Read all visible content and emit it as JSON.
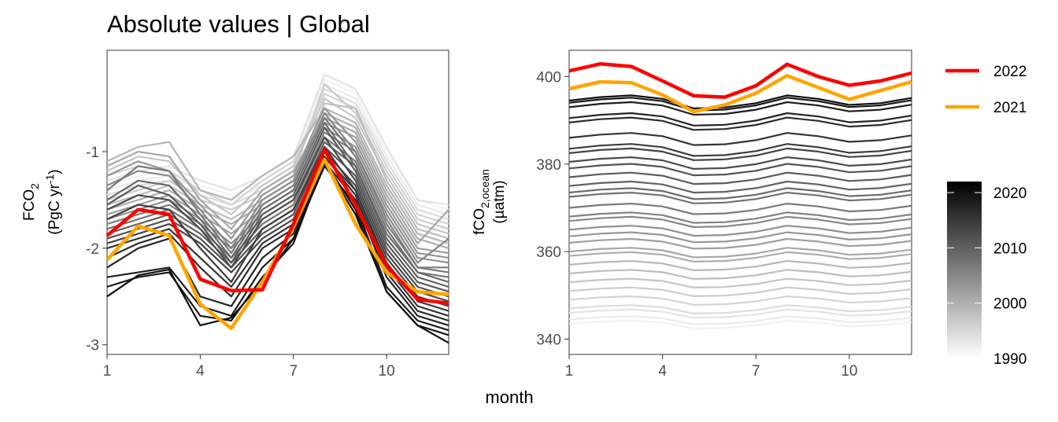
{
  "figure": {
    "title": "Absolute values | Global",
    "xlabel": "month"
  },
  "legend": {
    "highlight": [
      {
        "name": "2022",
        "color": "#FF0000"
      },
      {
        "name": "2021",
        "color": "#FFA500"
      }
    ],
    "colorbar": {
      "ticks": [
        1990,
        2000,
        2010,
        2020
      ],
      "range": [
        1990,
        2022
      ],
      "low_color": "#FFFFFF",
      "high_color": "#000000"
    }
  },
  "chart_data": [
    {
      "type": "line",
      "ylabel_main": "FCO",
      "ylabel_sub": "2",
      "ylabel_unit_prefix": "(PgC yr",
      "ylabel_unit_sup": "-1",
      "ylabel_unit_suffix": ")",
      "x": [
        1,
        2,
        3,
        4,
        5,
        6,
        7,
        8,
        9,
        10,
        11,
        12
      ],
      "xlim": [
        1,
        12
      ],
      "ylim": [
        -3.1,
        0.05
      ],
      "xticks": [
        1,
        4,
        7,
        10
      ],
      "yticks": [
        -3,
        -2,
        -1
      ],
      "background_years": [
        1990,
        1991,
        1992,
        1993,
        1994,
        1995,
        1996,
        1997,
        1998,
        1999,
        2000,
        2001,
        2002,
        2003,
        2004,
        2005,
        2006,
        2007,
        2008,
        2009,
        2010,
        2011,
        2012,
        2013,
        2014,
        2015,
        2016,
        2017,
        2018,
        2019,
        2020
      ],
      "background_series": [
        {
          "year": 1990,
          "values": [
            -1.35,
            -1.25,
            -1.2,
            -1.35,
            -1.45,
            -1.3,
            -1.1,
            -0.25,
            -0.4,
            -1.0,
            -1.5,
            -1.6
          ]
        },
        {
          "year": 1991,
          "values": [
            -1.4,
            -1.3,
            -1.25,
            -1.4,
            -1.5,
            -1.35,
            -1.15,
            -0.3,
            -0.45,
            -1.05,
            -1.55,
            -1.65
          ]
        },
        {
          "year": 1992,
          "values": [
            -1.3,
            -1.2,
            -1.15,
            -1.3,
            -1.4,
            -1.25,
            -1.05,
            -0.2,
            -0.35,
            -0.95,
            -1.5,
            -1.55
          ]
        },
        {
          "year": 1993,
          "values": [
            -1.45,
            -1.35,
            -1.3,
            -1.45,
            -1.55,
            -1.4,
            -1.2,
            -0.35,
            -0.5,
            -1.1,
            -1.6,
            -1.7
          ]
        },
        {
          "year": 1994,
          "values": [
            -1.25,
            -1.15,
            -1.2,
            -1.4,
            -1.55,
            -1.3,
            -1.1,
            -0.4,
            -0.55,
            -1.15,
            -1.65,
            -1.75
          ]
        },
        {
          "year": 1995,
          "values": [
            -1.5,
            -1.4,
            -1.3,
            -1.5,
            -1.6,
            -1.45,
            -1.25,
            -0.3,
            -0.6,
            -1.2,
            -1.7,
            -1.8
          ]
        },
        {
          "year": 1996,
          "values": [
            -1.2,
            -1.05,
            -1.1,
            -1.45,
            -1.65,
            -1.35,
            -1.15,
            -0.45,
            -0.65,
            -1.25,
            -1.75,
            -1.85
          ]
        },
        {
          "year": 1997,
          "values": [
            -1.55,
            -1.45,
            -1.35,
            -1.55,
            -1.7,
            -1.5,
            -1.3,
            -0.5,
            -0.55,
            -1.3,
            -1.8,
            -1.9
          ]
        },
        {
          "year": 1998,
          "values": [
            -1.1,
            -0.95,
            -0.9,
            -1.4,
            -1.5,
            -1.25,
            -1.05,
            -0.55,
            -0.7,
            -1.35,
            -1.85,
            -1.95
          ]
        },
        {
          "year": 1999,
          "values": [
            -1.6,
            -1.5,
            -1.4,
            -1.6,
            -1.75,
            -1.55,
            -1.35,
            -0.6,
            -0.75,
            -1.4,
            -1.9,
            -2.0
          ]
        },
        {
          "year": 2000,
          "values": [
            -1.15,
            -1.0,
            -1.05,
            -1.5,
            -1.8,
            -1.4,
            -1.2,
            -0.65,
            -0.8,
            -1.45,
            -1.95,
            -1.6
          ]
        },
        {
          "year": 2001,
          "values": [
            -1.65,
            -1.55,
            -1.45,
            -1.65,
            -1.85,
            -1.6,
            -1.4,
            -0.7,
            -0.85,
            -1.5,
            -2.0,
            -2.05
          ]
        },
        {
          "year": 2002,
          "values": [
            -1.25,
            -1.1,
            -1.2,
            -1.55,
            -1.9,
            -1.45,
            -1.25,
            -0.55,
            -0.9,
            -1.55,
            -2.05,
            -2.1
          ]
        },
        {
          "year": 2003,
          "values": [
            -1.7,
            -1.6,
            -1.5,
            -1.7,
            -1.95,
            -1.65,
            -1.45,
            -0.75,
            -0.95,
            -1.6,
            -2.1,
            -2.15
          ]
        },
        {
          "year": 2004,
          "values": [
            -1.35,
            -1.2,
            -1.25,
            -1.6,
            -2.0,
            -1.5,
            -1.3,
            -0.6,
            -1.0,
            -1.65,
            -2.15,
            -1.9
          ]
        },
        {
          "year": 2005,
          "values": [
            -1.75,
            -1.65,
            -1.55,
            -1.75,
            -2.0,
            -1.7,
            -1.5,
            -0.8,
            -1.0,
            -1.7,
            -2.2,
            -2.2
          ]
        },
        {
          "year": 2006,
          "values": [
            -1.4,
            -1.15,
            -1.2,
            -1.65,
            -2.05,
            -1.55,
            -1.35,
            -0.65,
            -1.05,
            -1.75,
            -2.2,
            -2.25
          ]
        },
        {
          "year": 2007,
          "values": [
            -1.8,
            -1.7,
            -1.6,
            -1.8,
            -2.1,
            -1.75,
            -1.55,
            -0.85,
            -1.1,
            -1.8,
            -2.25,
            -2.3
          ]
        },
        {
          "year": 2008,
          "values": [
            -1.5,
            -1.3,
            -1.35,
            -1.7,
            -2.1,
            -1.6,
            -1.4,
            -0.7,
            -1.15,
            -1.85,
            -2.25,
            -2.35
          ]
        },
        {
          "year": 2009,
          "values": [
            -1.85,
            -1.75,
            -1.65,
            -1.85,
            -2.15,
            -1.8,
            -1.6,
            -0.9,
            -1.15,
            -1.9,
            -2.3,
            -2.4
          ]
        },
        {
          "year": 2010,
          "values": [
            -1.55,
            -1.35,
            -1.45,
            -1.75,
            -2.15,
            -1.65,
            -1.45,
            -0.75,
            -1.2,
            -1.95,
            -2.35,
            -2.45
          ]
        },
        {
          "year": 2011,
          "values": [
            -1.9,
            -1.8,
            -1.7,
            -1.9,
            -2.2,
            -1.85,
            -1.65,
            -0.95,
            -1.25,
            -2.0,
            -2.4,
            -2.5
          ]
        },
        {
          "year": 2012,
          "values": [
            -1.6,
            -1.45,
            -1.5,
            -1.8,
            -2.2,
            -1.7,
            -1.5,
            -0.85,
            -1.3,
            -2.05,
            -2.45,
            -2.55
          ]
        },
        {
          "year": 2013,
          "values": [
            -1.95,
            -1.85,
            -1.75,
            -1.95,
            -2.25,
            -1.9,
            -1.7,
            -1.0,
            -1.35,
            -2.1,
            -2.5,
            -2.6
          ]
        },
        {
          "year": 2014,
          "values": [
            -1.7,
            -1.55,
            -1.6,
            -2.0,
            -2.35,
            -1.8,
            -1.6,
            -0.95,
            -1.4,
            -2.15,
            -2.55,
            -2.65
          ]
        },
        {
          "year": 2015,
          "values": [
            -2.0,
            -1.9,
            -1.8,
            -2.1,
            -2.4,
            -1.95,
            -1.75,
            -1.05,
            -1.4,
            -2.2,
            -2.6,
            -2.7
          ]
        },
        {
          "year": 2016,
          "values": [
            -2.1,
            -1.95,
            -1.85,
            -2.2,
            -2.5,
            -2.0,
            -1.8,
            -1.05,
            -1.45,
            -2.25,
            -2.65,
            -2.75
          ]
        },
        {
          "year": 2017,
          "values": [
            -2.2,
            -2.0,
            -1.9,
            -2.5,
            -2.6,
            -2.1,
            -1.85,
            -1.1,
            -1.5,
            -2.3,
            -2.7,
            -2.8
          ]
        },
        {
          "year": 2018,
          "values": [
            -2.3,
            -2.25,
            -2.2,
            -2.6,
            -2.7,
            -2.2,
            -1.9,
            -1.15,
            -1.55,
            -2.4,
            -2.75,
            -2.85
          ]
        },
        {
          "year": 2019,
          "values": [
            -2.4,
            -2.3,
            -2.25,
            -2.7,
            -2.75,
            -2.3,
            -1.95,
            -1.1,
            -1.6,
            -2.45,
            -2.8,
            -2.9
          ]
        },
        {
          "year": 2020,
          "values": [
            -2.5,
            -2.28,
            -2.22,
            -2.8,
            -2.72,
            -2.35,
            -1.9,
            -1.12,
            -1.65,
            -2.45,
            -2.8,
            -2.98
          ]
        }
      ],
      "highlight_series": [
        {
          "name": "2021",
          "color": "#FFA500",
          "values": [
            -2.12,
            -1.77,
            -1.87,
            -2.58,
            -2.83,
            -2.35,
            -1.78,
            -1.08,
            -1.75,
            -2.25,
            -2.45,
            -2.48
          ]
        },
        {
          "name": "2022",
          "color": "#FF0000",
          "values": [
            -1.87,
            -1.6,
            -1.65,
            -2.32,
            -2.44,
            -2.43,
            -1.75,
            -0.98,
            -1.55,
            -2.18,
            -2.53,
            -2.57
          ]
        }
      ]
    },
    {
      "type": "line",
      "ylabel_main": "fCO",
      "ylabel_sub": "2,ocean",
      "ylabel_unit": "(µatm)",
      "x": [
        1,
        2,
        3,
        4,
        5,
        6,
        7,
        8,
        9,
        10,
        11,
        12
      ],
      "xlim": [
        1,
        12
      ],
      "ylim": [
        336.5,
        406
      ],
      "xticks": [
        1,
        4,
        7,
        10
      ],
      "yticks": [
        340,
        360,
        380,
        400
      ],
      "background_years": [
        1990,
        1991,
        1992,
        1993,
        1994,
        1995,
        1996,
        1997,
        1998,
        1999,
        2000,
        2001,
        2002,
        2003,
        2004,
        2005,
        2006,
        2007,
        2008,
        2009,
        2010,
        2011,
        2012,
        2013,
        2014,
        2015,
        2016,
        2017,
        2018,
        2019,
        2020
      ],
      "base_levels": [
        343.5,
        344.5,
        346.0,
        347.0,
        349.0,
        351.0,
        353.0,
        355.0,
        357.0,
        359.0,
        360.0,
        362.0,
        363.5,
        365.0,
        367.0,
        368.0,
        370.0,
        372.5,
        373.5,
        375.0,
        377.0,
        379.0,
        380.5,
        382.5,
        383.5,
        386.0,
        389.5,
        390.5,
        393.0,
        394.0,
        394.5
      ],
      "seasonal_offsets": [
        0.0,
        0.8,
        1.2,
        0.4,
        -1.8,
        -1.6,
        -0.6,
        1.2,
        0.4,
        -1.0,
        -0.6,
        0.6
      ],
      "highlight_series": [
        {
          "name": "2021",
          "color": "#FFA500",
          "values": [
            397.2,
            398.8,
            398.6,
            395.8,
            392.0,
            393.5,
            396.2,
            400.2,
            397.5,
            394.8,
            396.8,
            398.8
          ]
        },
        {
          "name": "2022",
          "color": "#FF0000",
          "values": [
            401.3,
            402.9,
            402.3,
            399.0,
            395.6,
            395.3,
            397.9,
            402.8,
            400.0,
            398.0,
            399.0,
            400.8
          ]
        }
      ]
    }
  ]
}
